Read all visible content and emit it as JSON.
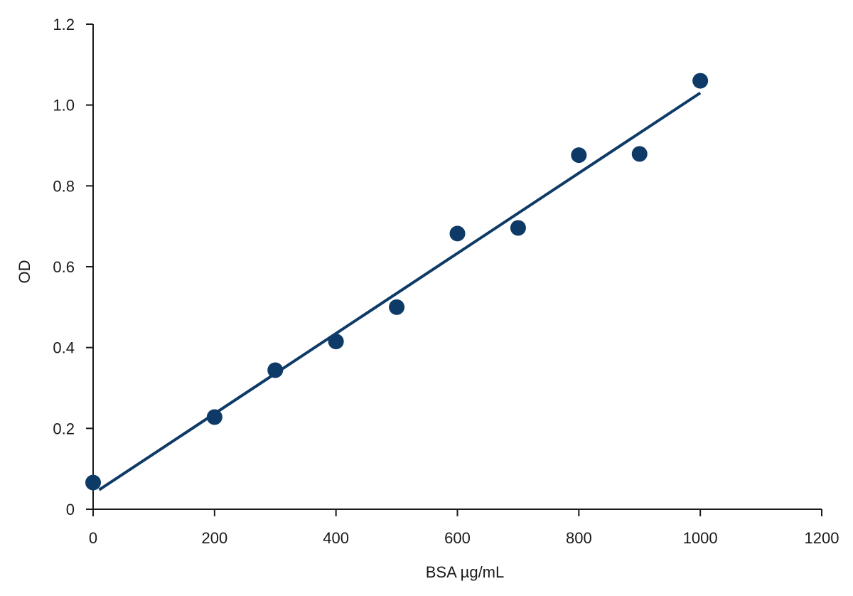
{
  "chart_data": {
    "type": "scatter",
    "title": "",
    "xlabel": "BSA µg/mL",
    "ylabel": "OD",
    "xlim": [
      0,
      1200
    ],
    "ylim": [
      0,
      1.2
    ],
    "x_ticks": [
      {
        "value": 0,
        "label": "0"
      },
      {
        "value": 200,
        "label": "200"
      },
      {
        "value": 400,
        "label": "400"
      },
      {
        "value": 600,
        "label": "600"
      },
      {
        "value": 800,
        "label": "800"
      },
      {
        "value": 1000,
        "label": "1000"
      },
      {
        "value": 1200,
        "label": "1200"
      }
    ],
    "y_ticks": [
      {
        "value": 0,
        "label": "0"
      },
      {
        "value": 0.2,
        "label": "0.2"
      },
      {
        "value": 0.4,
        "label": "0.4"
      },
      {
        "value": 0.6,
        "label": "0.6"
      },
      {
        "value": 0.8,
        "label": "0.8"
      },
      {
        "value": 1.0,
        "label": "1.0"
      },
      {
        "value": 1.2,
        "label": "1.2"
      }
    ],
    "grid": false,
    "legend": "none",
    "series": [
      {
        "color": "#0d3a66",
        "points": [
          {
            "x": 0,
            "y": 0.066
          },
          {
            "x": 200,
            "y": 0.228
          },
          {
            "x": 300,
            "y": 0.344
          },
          {
            "x": 400,
            "y": 0.415
          },
          {
            "x": 500,
            "y": 0.5
          },
          {
            "x": 600,
            "y": 0.682
          },
          {
            "x": 700,
            "y": 0.696
          },
          {
            "x": 800,
            "y": 0.876
          },
          {
            "x": 900,
            "y": 0.879
          },
          {
            "x": 1000,
            "y": 1.06
          }
        ]
      }
    ],
    "trendline": {
      "color": "#0d3a66",
      "x_start": 10,
      "y_start": 0.048,
      "x_end": 1000,
      "y_end": 1.03
    }
  }
}
